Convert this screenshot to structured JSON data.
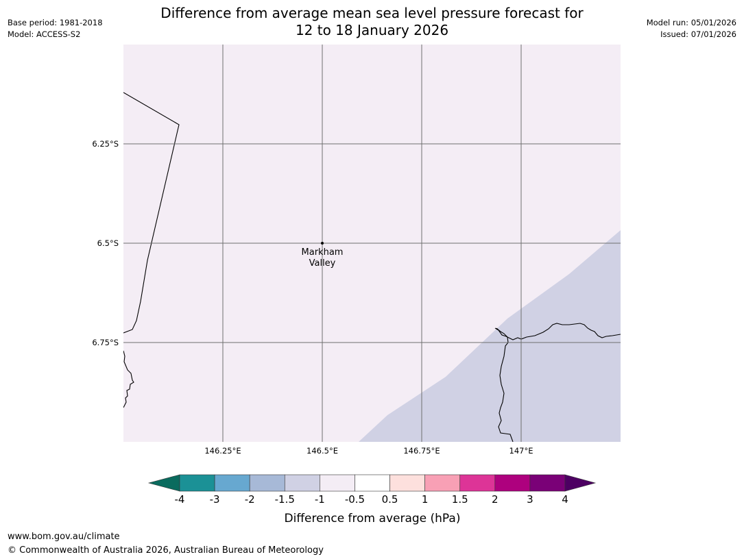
{
  "title": {
    "line1": "Difference from average mean sea level pressure forecast for",
    "line2": "12 to 18 January 2026"
  },
  "meta_left": {
    "base_period": "Base period: 1981-2018",
    "model": "Model: ACCESS-S2"
  },
  "meta_right": {
    "model_run": "Model run: 05/01/2026",
    "issued": "Issued: 07/01/2026"
  },
  "map": {
    "lon_range": [
      146.0,
      147.25
    ],
    "lat_range": [
      -6.0,
      -7.0
    ],
    "lon_ticks": [
      {
        "value": 146.25,
        "label": "146.25°E"
      },
      {
        "value": 146.5,
        "label": "146.5°E"
      },
      {
        "value": 146.75,
        "label": "146.75°E"
      },
      {
        "value": 147.0,
        "label": "147°E"
      }
    ],
    "lat_ticks": [
      {
        "value": -6.25,
        "label": "6.25°S"
      },
      {
        "value": -6.5,
        "label": "6.5°S"
      },
      {
        "value": -6.75,
        "label": "6.75°S"
      }
    ],
    "location": {
      "lon": 146.5,
      "lat": -6.5,
      "name_line1": "Markham",
      "name_line2": "Valley"
    },
    "fill_colors": {
      "background": "#f4edf5",
      "negative_band": "#d0d1e4"
    },
    "gridline_color": "#6e6e6e"
  },
  "colorbar": {
    "label": "Difference from average (hPa)",
    "tick_labels": [
      "-4",
      "-3",
      "-2",
      "-1.5",
      "-1",
      "-0.5",
      "0.5",
      "1",
      "1.5",
      "2",
      "3",
      "4"
    ],
    "under_color": "#0a6b5e",
    "over_color": "#4d0062",
    "segment_colors": [
      "#1b9196",
      "#67a8d0",
      "#a7b9d7",
      "#d0d1e4",
      "#f4edf5",
      "#ffffff",
      "#fde0dd",
      "#f8a0b5",
      "#dd3497",
      "#ae017e",
      "#7a0177"
    ]
  },
  "footer": {
    "url": "www.bom.gov.au/climate",
    "copyright": "© Commonwealth of Australia 2026, Australian Bureau of Meteorology"
  }
}
